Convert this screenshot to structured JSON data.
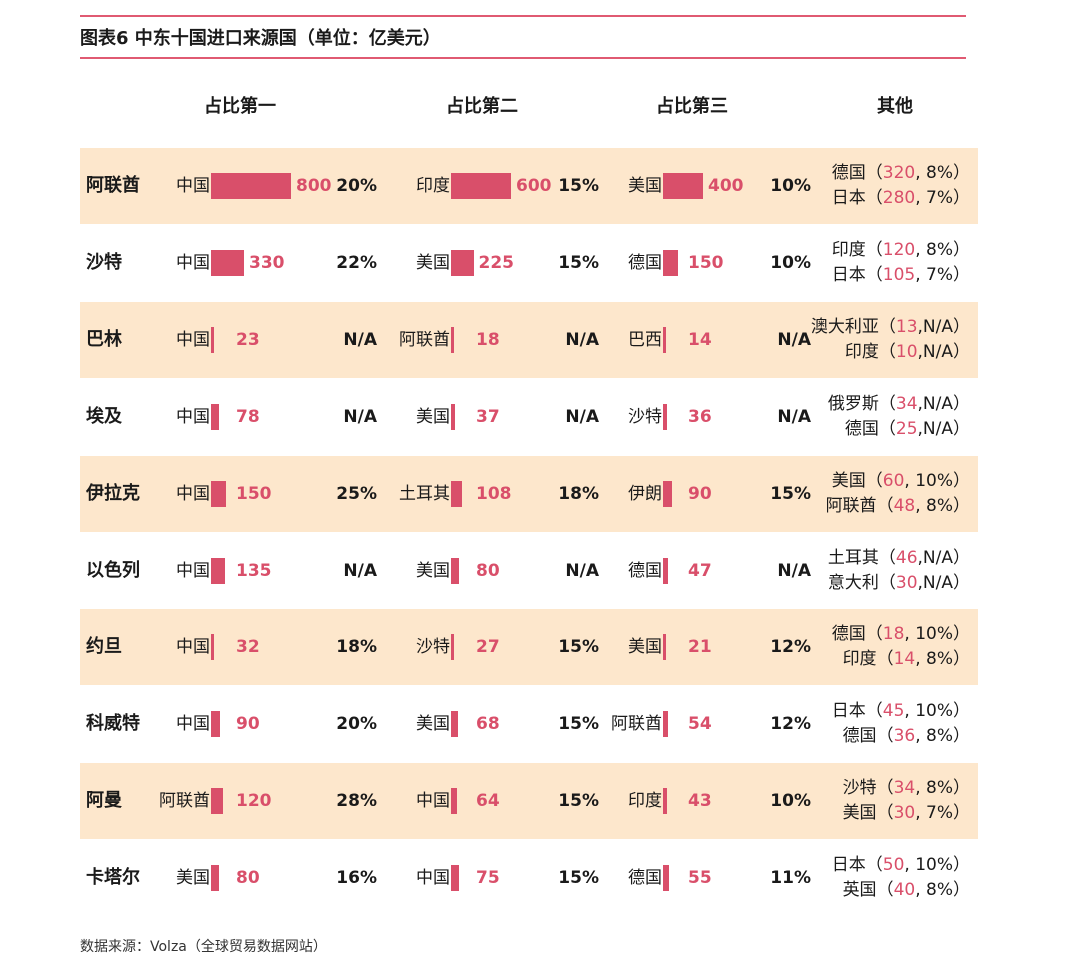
{
  "title": "图表6  中东十国进口来源国（单位：亿美元）",
  "headers": [
    "占比第一",
    "占比第二",
    "占比第三",
    "其他"
  ],
  "footer": "数据来源：Volza（全球贸易数据网站）",
  "colors": {
    "bar": "#d94f6a",
    "value": "#d94f6a",
    "row_shade": "#fde7cc",
    "rule": "#e05a72",
    "text": "#1a1a1a"
  },
  "chart_data": {
    "type": "table",
    "bar_scale_max": 800,
    "rows": [
      {
        "country": "阿联酋",
        "top": [
          {
            "source": "中国",
            "value": 800,
            "share": "20%"
          },
          {
            "source": "印度",
            "value": 600,
            "share": "15%"
          },
          {
            "source": "美国",
            "value": 400,
            "share": "10%"
          }
        ],
        "others": [
          {
            "source": "德国",
            "value": "320",
            "share": "8%",
            "sep": ", "
          },
          {
            "source": "日本",
            "value": "280",
            "share": "7%",
            "sep": ", "
          }
        ]
      },
      {
        "country": "沙特",
        "top": [
          {
            "source": "中国",
            "value": 330,
            "share": "22%"
          },
          {
            "source": "美国",
            "value": 225,
            "share": "15%"
          },
          {
            "source": "德国",
            "value": 150,
            "share": "10%"
          }
        ],
        "others": [
          {
            "source": "印度",
            "value": "120",
            "share": "8%",
            "sep": ", "
          },
          {
            "source": "日本",
            "value": "105",
            "share": "7%",
            "sep": ", "
          }
        ]
      },
      {
        "country": "巴林",
        "top": [
          {
            "source": "中国",
            "value": 23,
            "share": "N/A"
          },
          {
            "source": "阿联酋",
            "value": 18,
            "share": "N/A"
          },
          {
            "source": "巴西",
            "value": 14,
            "share": "N/A"
          }
        ],
        "others": [
          {
            "source": "澳大利亚",
            "value": "13",
            "share": "N/A",
            "sep": ","
          },
          {
            "source": "印度",
            "value": "10",
            "share": "N/A",
            "sep": ","
          }
        ]
      },
      {
        "country": "埃及",
        "top": [
          {
            "source": "中国",
            "value": 78,
            "share": "N/A"
          },
          {
            "source": "美国",
            "value": 37,
            "share": "N/A"
          },
          {
            "source": "沙特",
            "value": 36,
            "share": "N/A"
          }
        ],
        "others": [
          {
            "source": "俄罗斯",
            "value": "34",
            "share": "N/A",
            "sep": ","
          },
          {
            "source": "德国",
            "value": "25",
            "share": "N/A",
            "sep": ","
          }
        ]
      },
      {
        "country": "伊拉克",
        "top": [
          {
            "source": "中国",
            "value": 150,
            "share": "25%"
          },
          {
            "source": "土耳其",
            "value": 108,
            "share": "18%"
          },
          {
            "source": "伊朗",
            "value": 90,
            "share": "15%"
          }
        ],
        "others": [
          {
            "source": "美国",
            "value": "60",
            "share": "10%",
            "sep": ", "
          },
          {
            "source": "阿联酋",
            "value": "48",
            "share": "8%",
            "sep": ", "
          }
        ]
      },
      {
        "country": "以色列",
        "top": [
          {
            "source": "中国",
            "value": 135,
            "share": "N/A"
          },
          {
            "source": "美国",
            "value": 80,
            "share": "N/A"
          },
          {
            "source": "德国",
            "value": 47,
            "share": "N/A"
          }
        ],
        "others": [
          {
            "source": "土耳其",
            "value": "46",
            "share": "N/A",
            "sep": ","
          },
          {
            "source": "意大利",
            "value": "30",
            "share": "N/A",
            "sep": ","
          }
        ]
      },
      {
        "country": "约旦",
        "top": [
          {
            "source": "中国",
            "value": 32,
            "share": "18%"
          },
          {
            "source": "沙特",
            "value": 27,
            "share": "15%"
          },
          {
            "source": "美国",
            "value": 21,
            "share": "12%"
          }
        ],
        "others": [
          {
            "source": "德国",
            "value": "18",
            "share": "10%",
            "sep": ", "
          },
          {
            "source": "印度",
            "value": "14",
            "share": "8%",
            "sep": ", "
          }
        ]
      },
      {
        "country": "科威特",
        "top": [
          {
            "source": "中国",
            "value": 90,
            "share": "20%"
          },
          {
            "source": "美国",
            "value": 68,
            "share": "15%"
          },
          {
            "source": "阿联酋",
            "value": 54,
            "share": "12%"
          }
        ],
        "others": [
          {
            "source": "日本",
            "value": "45",
            "share": "10%",
            "sep": ", "
          },
          {
            "source": "德国",
            "value": "36",
            "share": "8%",
            "sep": ", "
          }
        ]
      },
      {
        "country": "阿曼",
        "top": [
          {
            "source": "阿联酋",
            "value": 120,
            "share": "28%"
          },
          {
            "source": "中国",
            "value": 64,
            "share": "15%"
          },
          {
            "source": "印度",
            "value": 43,
            "share": "10%"
          }
        ],
        "others": [
          {
            "source": "沙特",
            "value": "34",
            "share": "8%",
            "sep": ", "
          },
          {
            "source": "美国",
            "value": "30",
            "share": "7%",
            "sep": ", "
          }
        ]
      },
      {
        "country": "卡塔尔",
        "top": [
          {
            "source": "美国",
            "value": 80,
            "share": "16%"
          },
          {
            "source": "中国",
            "value": 75,
            "share": "15%"
          },
          {
            "source": "德国",
            "value": 55,
            "share": "11%"
          }
        ],
        "others": [
          {
            "source": "日本",
            "value": "50",
            "share": "10%",
            "sep": ", "
          },
          {
            "source": "英国",
            "value": "40",
            "share": "8%",
            "sep": ", "
          }
        ]
      }
    ]
  }
}
